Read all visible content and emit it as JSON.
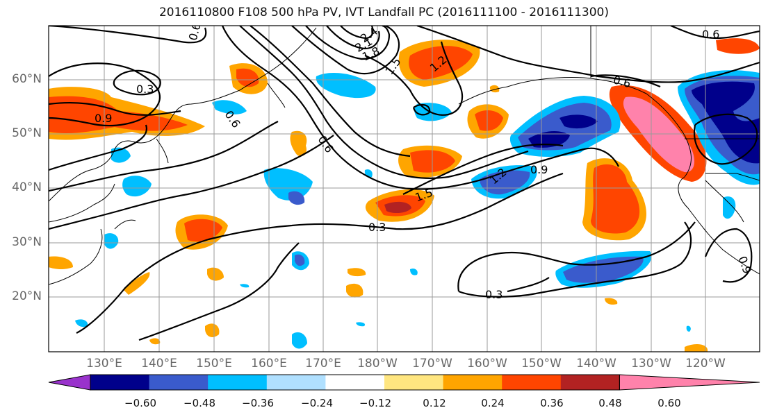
{
  "title": "2016110800 F108 500 hPa PV, IVT Landfall PC (2016111100 - 2016111300)",
  "lat_labels": [
    "60°N",
    "50°N",
    "40°N",
    "30°N",
    "20°N"
  ],
  "lon_labels": [
    "130°E",
    "140°E",
    "150°E",
    "160°E",
    "170°E",
    "180°W",
    "170°W",
    "160°W",
    "150°W",
    "140°W",
    "130°W",
    "120°W"
  ],
  "contour_labels": [
    "0.6",
    "0.3",
    "0.9",
    "0.6",
    "0.6",
    "2.4",
    "2.1",
    "1.8",
    "1.5",
    "1.2",
    "0.6",
    "1.2",
    "0.9",
    "1.5",
    "0.3",
    "0.3",
    "0.6",
    "0.9"
  ],
  "colorbar": {
    "ticks": [
      "−0.60",
      "−0.48",
      "−0.36",
      "−0.24",
      "−0.12",
      "0.12",
      "0.24",
      "0.36",
      "0.48",
      "0.60"
    ],
    "colors": [
      "#9932cc",
      "#00008b",
      "#3a5bcc",
      "#00bfff",
      "#b0e0ff",
      "#ffffff",
      "#ffe680",
      "#ffa500",
      "#ff4500",
      "#b22222",
      "#ff82ab"
    ]
  }
}
